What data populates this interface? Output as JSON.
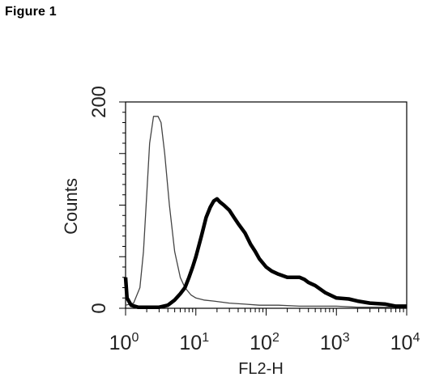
{
  "figure_title": "Figure 1",
  "chart_data": {
    "type": "line",
    "xlabel": "FL2-H",
    "ylabel": "Counts",
    "x_scale": "log",
    "xlim": [
      1,
      10000
    ],
    "ylim": [
      0,
      200
    ],
    "x_ticks": [
      {
        "base": "10",
        "exp": "0"
      },
      {
        "base": "10",
        "exp": "1"
      },
      {
        "base": "10",
        "exp": "2"
      },
      {
        "base": "10",
        "exp": "3"
      },
      {
        "base": "10",
        "exp": "4"
      }
    ],
    "y_tick_labels": [
      "0",
      "200"
    ],
    "series": [
      {
        "style": "thin",
        "color": "#444444",
        "points": [
          [
            1.0,
            3
          ],
          [
            1.3,
            5
          ],
          [
            1.6,
            20
          ],
          [
            1.8,
            55
          ],
          [
            2.0,
            110
          ],
          [
            2.2,
            160
          ],
          [
            2.5,
            186
          ],
          [
            2.9,
            186
          ],
          [
            3.2,
            180
          ],
          [
            3.6,
            150
          ],
          [
            4.2,
            100
          ],
          [
            5.0,
            55
          ],
          [
            6.0,
            30
          ],
          [
            7.0,
            20
          ],
          [
            8.5,
            13
          ],
          [
            10,
            10
          ],
          [
            13,
            8
          ],
          [
            18,
            7
          ],
          [
            30,
            5
          ],
          [
            50,
            4
          ],
          [
            80,
            3
          ],
          [
            150,
            3
          ],
          [
            300,
            2
          ],
          [
            600,
            2
          ],
          [
            1000,
            2
          ],
          [
            2000,
            1
          ],
          [
            10000,
            1
          ]
        ]
      },
      {
        "style": "thick",
        "color": "#000000",
        "points": [
          [
            1.0,
            30
          ],
          [
            1.05,
            10
          ],
          [
            1.2,
            3
          ],
          [
            1.5,
            1
          ],
          [
            2.0,
            1
          ],
          [
            3.0,
            1
          ],
          [
            4.0,
            3
          ],
          [
            5.0,
            8
          ],
          [
            6.0,
            14
          ],
          [
            7.0,
            20
          ],
          [
            8.0,
            30
          ],
          [
            9.0,
            40
          ],
          [
            10,
            50
          ],
          [
            12,
            70
          ],
          [
            14,
            88
          ],
          [
            16,
            98
          ],
          [
            18,
            104
          ],
          [
            20,
            106
          ],
          [
            22,
            103
          ],
          [
            25,
            100
          ],
          [
            30,
            95
          ],
          [
            35,
            88
          ],
          [
            40,
            82
          ],
          [
            50,
            73
          ],
          [
            60,
            62
          ],
          [
            70,
            55
          ],
          [
            80,
            48
          ],
          [
            100,
            40
          ],
          [
            120,
            36
          ],
          [
            150,
            33
          ],
          [
            200,
            30
          ],
          [
            300,
            30
          ],
          [
            350,
            28
          ],
          [
            400,
            25
          ],
          [
            500,
            22
          ],
          [
            700,
            15
          ],
          [
            1000,
            10
          ],
          [
            1500,
            9
          ],
          [
            2000,
            7
          ],
          [
            3000,
            5
          ],
          [
            5000,
            4
          ],
          [
            7000,
            2
          ],
          [
            10000,
            2
          ]
        ]
      }
    ]
  }
}
